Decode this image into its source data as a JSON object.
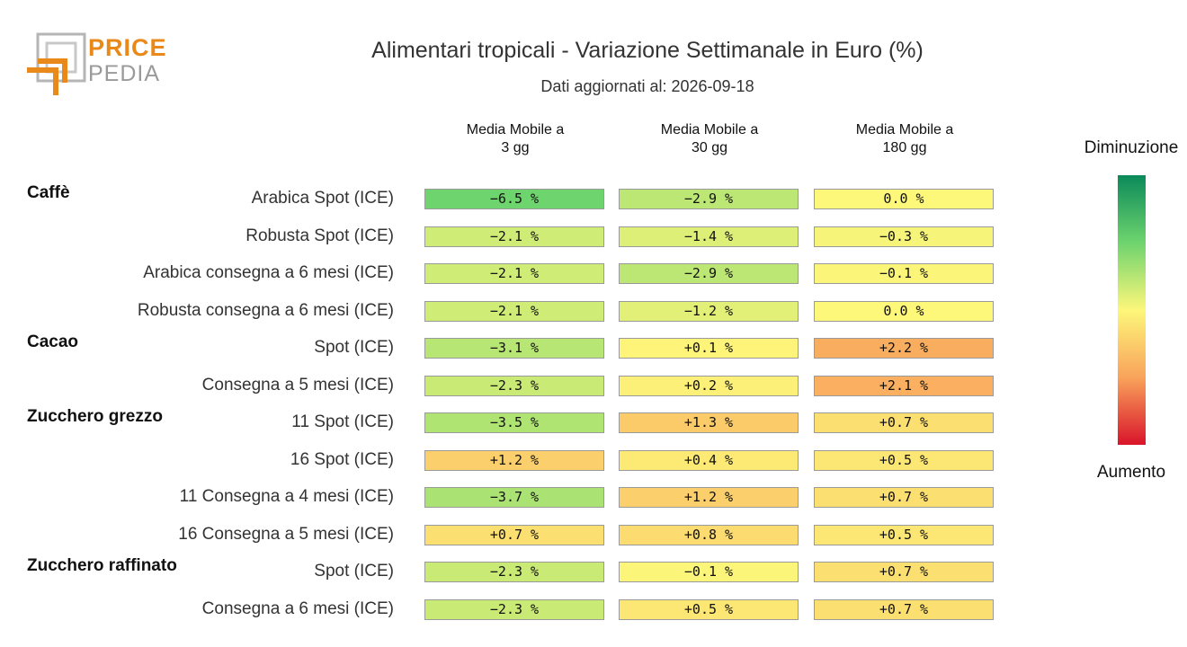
{
  "logo": {
    "line1": "PRICE",
    "line2": "PEDIA"
  },
  "chart_data": {
    "type": "table",
    "title": "Alimentari tropicali - Variazione Settimanale in Euro (%)",
    "subtitle": "Dati aggiornati al: 2026-09-18",
    "columns": [
      "Media Mobile a\n3 gg",
      "Media Mobile a\n30 gg",
      "Media Mobile a\n180 gg"
    ],
    "rows": [
      {
        "group": "Caffè",
        "label": "Arabica Spot (ICE)",
        "values": [
          -6.5,
          -2.9,
          0.0
        ],
        "display": [
          "−6.5 %",
          "−2.9 %",
          "0.0 %"
        ]
      },
      {
        "group": "",
        "label": "Robusta Spot (ICE)",
        "values": [
          -2.1,
          -1.4,
          -0.3
        ],
        "display": [
          "−2.1 %",
          "−1.4 %",
          "−0.3 %"
        ]
      },
      {
        "group": "",
        "label": "Arabica consegna a 6 mesi (ICE)",
        "values": [
          -2.1,
          -2.9,
          -0.1
        ],
        "display": [
          "−2.1 %",
          "−2.9 %",
          "−0.1 %"
        ]
      },
      {
        "group": "",
        "label": "Robusta consegna a 6 mesi (ICE)",
        "values": [
          -2.1,
          -1.2,
          0.0
        ],
        "display": [
          "−2.1 %",
          "−1.2 %",
          "0.0 %"
        ]
      },
      {
        "group": "Cacao",
        "label": "Spot (ICE)",
        "values": [
          -3.1,
          0.1,
          2.2
        ],
        "display": [
          "−3.1 %",
          "+0.1 %",
          "+2.2 %"
        ]
      },
      {
        "group": "",
        "label": "Consegna a 5 mesi (ICE)",
        "values": [
          -2.3,
          0.2,
          2.1
        ],
        "display": [
          "−2.3 %",
          "+0.2 %",
          "+2.1 %"
        ]
      },
      {
        "group": "Zucchero grezzo",
        "label": "11 Spot (ICE)",
        "values": [
          -3.5,
          1.3,
          0.7
        ],
        "display": [
          "−3.5 %",
          "+1.3 %",
          "+0.7 %"
        ]
      },
      {
        "group": "",
        "label": "16 Spot (ICE)",
        "values": [
          1.2,
          0.4,
          0.5
        ],
        "display": [
          "+1.2 %",
          "+0.4 %",
          "+0.5 %"
        ]
      },
      {
        "group": "",
        "label": "11 Consegna a 4 mesi (ICE)",
        "values": [
          -3.7,
          1.2,
          0.7
        ],
        "display": [
          "−3.7 %",
          "+1.2 %",
          "+0.7 %"
        ]
      },
      {
        "group": "",
        "label": "16 Consegna a 5 mesi (ICE)",
        "values": [
          0.7,
          0.8,
          0.5
        ],
        "display": [
          "+0.7 %",
          "+0.8 %",
          "+0.5 %"
        ]
      },
      {
        "group": "Zucchero raffinato",
        "label": "Spot (ICE)",
        "values": [
          -2.3,
          -0.1,
          0.7
        ],
        "display": [
          "−2.3 %",
          "−0.1 %",
          "+0.7 %"
        ]
      },
      {
        "group": "",
        "label": "Consegna a 6 mesi (ICE)",
        "values": [
          -2.3,
          0.5,
          0.7
        ],
        "display": [
          "−2.3 %",
          "+0.5 %",
          "+0.7 %"
        ]
      }
    ],
    "legend": {
      "top_label": "Diminuzione",
      "bottom_label": "Aumento"
    },
    "colors": {
      "strong_decrease": "#0b8a5a",
      "decrease": "#6ed46e",
      "neutral": "#fdf77a",
      "increase": "#f9a35b",
      "strong_increase": "#d9142a"
    }
  }
}
